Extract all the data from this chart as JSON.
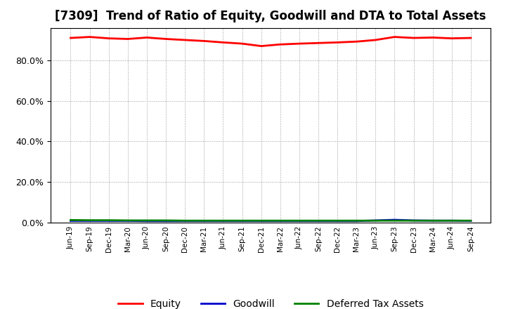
{
  "title": "[7309]  Trend of Ratio of Equity, Goodwill and DTA to Total Assets",
  "x_labels": [
    "Jun-19",
    "Sep-19",
    "Dec-19",
    "Mar-20",
    "Jun-20",
    "Sep-20",
    "Dec-20",
    "Mar-21",
    "Jun-21",
    "Sep-21",
    "Dec-21",
    "Mar-22",
    "Jun-22",
    "Sep-22",
    "Dec-22",
    "Mar-23",
    "Jun-23",
    "Sep-23",
    "Dec-23",
    "Mar-24",
    "Jun-24",
    "Sep-24"
  ],
  "equity": [
    0.91,
    0.915,
    0.908,
    0.905,
    0.912,
    0.905,
    0.9,
    0.895,
    0.888,
    0.882,
    0.87,
    0.878,
    0.882,
    0.885,
    0.888,
    0.892,
    0.9,
    0.915,
    0.91,
    0.912,
    0.908,
    0.91
  ],
  "goodwill": [
    0.008,
    0.008,
    0.008,
    0.008,
    0.007,
    0.007,
    0.007,
    0.007,
    0.007,
    0.007,
    0.007,
    0.007,
    0.007,
    0.007,
    0.007,
    0.007,
    0.01,
    0.013,
    0.01,
    0.009,
    0.009,
    0.008
  ],
  "dta": [
    0.012,
    0.011,
    0.011,
    0.01,
    0.01,
    0.01,
    0.009,
    0.009,
    0.009,
    0.009,
    0.009,
    0.009,
    0.009,
    0.009,
    0.009,
    0.009,
    0.009,
    0.009,
    0.009,
    0.009,
    0.009,
    0.009
  ],
  "equity_color": "#FF0000",
  "goodwill_color": "#0000CC",
  "dta_color": "#008000",
  "bg_color": "#FFFFFF",
  "plot_bg_color": "#FFFFFF",
  "grid_color": "#999999",
  "ylim": [
    0.0,
    0.96
  ],
  "yticks": [
    0.0,
    0.2,
    0.4,
    0.6,
    0.8
  ],
  "title_fontsize": 12,
  "legend_labels": [
    "Equity",
    "Goodwill",
    "Deferred Tax Assets"
  ],
  "line_width": 2.0
}
